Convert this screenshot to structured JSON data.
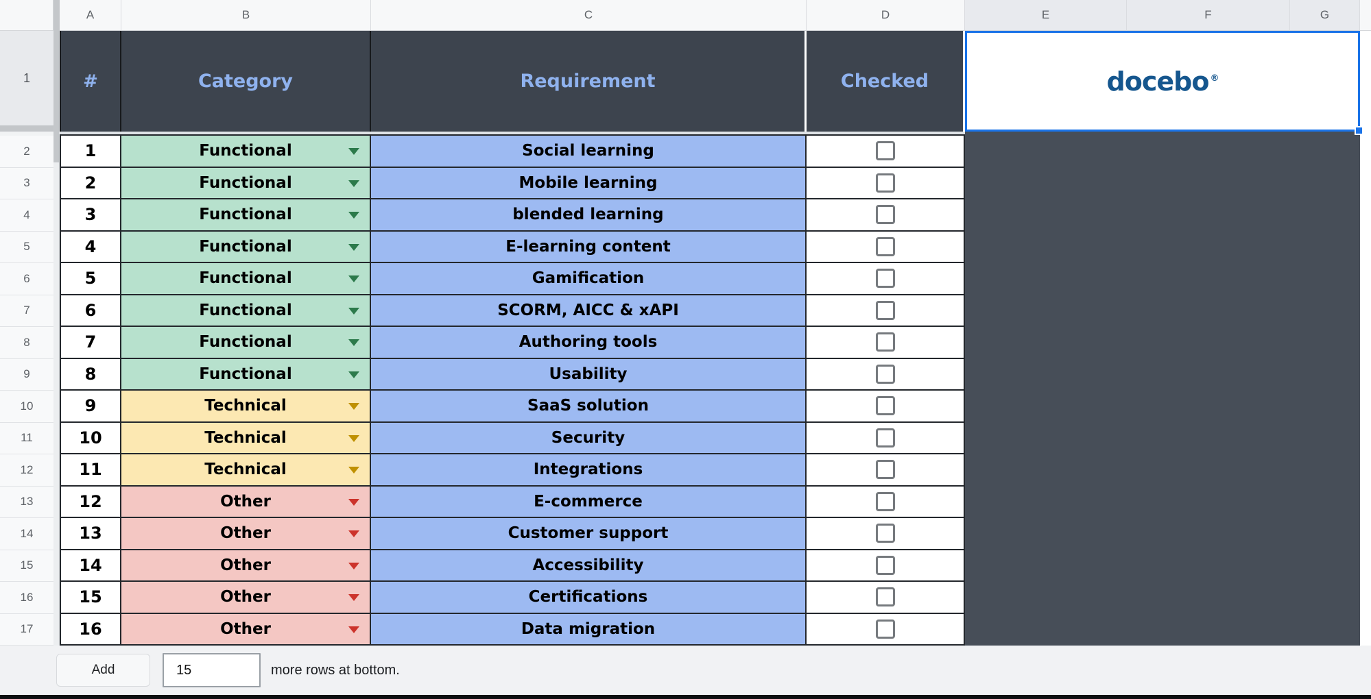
{
  "columns": [
    "A",
    "B",
    "C",
    "D",
    "E",
    "F",
    "G"
  ],
  "selected_columns": [
    "E",
    "F",
    "G"
  ],
  "gutter": {
    "row1": "1"
  },
  "header_row": {
    "num": "#",
    "category": "Category",
    "requirement": "Requirement",
    "checked": "Checked",
    "logo": "docebo",
    "logo_mark": "®"
  },
  "rows": [
    {
      "gutter": "2",
      "num": "1",
      "category": "Functional",
      "color": "green",
      "requirement": "Social learning",
      "checked": false
    },
    {
      "gutter": "3",
      "num": "2",
      "category": "Functional",
      "color": "green",
      "requirement": "Mobile learning",
      "checked": false
    },
    {
      "gutter": "4",
      "num": "3",
      "category": "Functional",
      "color": "green",
      "requirement": "blended learning",
      "checked": false
    },
    {
      "gutter": "5",
      "num": "4",
      "category": "Functional",
      "color": "green",
      "requirement": "E-learning content",
      "checked": false
    },
    {
      "gutter": "6",
      "num": "5",
      "category": "Functional",
      "color": "green",
      "requirement": "Gamification",
      "checked": false
    },
    {
      "gutter": "7",
      "num": "6",
      "category": "Functional",
      "color": "green",
      "requirement": "SCORM, AICC & xAPI",
      "checked": false
    },
    {
      "gutter": "8",
      "num": "7",
      "category": "Functional",
      "color": "green",
      "requirement": "Authoring tools",
      "checked": false
    },
    {
      "gutter": "9",
      "num": "8",
      "category": "Functional",
      "color": "green",
      "requirement": "Usability",
      "checked": false
    },
    {
      "gutter": "10",
      "num": "9",
      "category": "Technical",
      "color": "yellow",
      "requirement": "SaaS solution",
      "checked": false
    },
    {
      "gutter": "11",
      "num": "10",
      "category": "Technical",
      "color": "yellow",
      "requirement": "Security",
      "checked": false
    },
    {
      "gutter": "12",
      "num": "11",
      "category": "Technical",
      "color": "yellow",
      "requirement": "Integrations",
      "checked": false
    },
    {
      "gutter": "13",
      "num": "12",
      "category": "Other",
      "color": "red",
      "requirement": "E-commerce",
      "checked": false
    },
    {
      "gutter": "14",
      "num": "13",
      "category": "Other",
      "color": "red",
      "requirement": "Customer support",
      "checked": false
    },
    {
      "gutter": "15",
      "num": "14",
      "category": "Other",
      "color": "red",
      "requirement": "Accessibility",
      "checked": false
    },
    {
      "gutter": "16",
      "num": "15",
      "category": "Other",
      "color": "red",
      "requirement": "Certifications",
      "checked": false
    },
    {
      "gutter": "17",
      "num": "16",
      "category": "Other",
      "color": "red",
      "requirement": "Data migration",
      "checked": false
    }
  ],
  "footer": {
    "add_label": "Add",
    "rows_count": "15",
    "suffix_text": "more rows at bottom."
  },
  "colors": {
    "header_fill": "#3d444e",
    "header_text": "#8fb2ee",
    "dark_region": "#474e58",
    "category_green": "#b7e1cd",
    "category_yellow": "#fce8b2",
    "category_red": "#f4c7c3",
    "requirement_blue": "#9dbaf2",
    "selection_blue": "#1a73e8",
    "logo_blue": "#15568e"
  }
}
